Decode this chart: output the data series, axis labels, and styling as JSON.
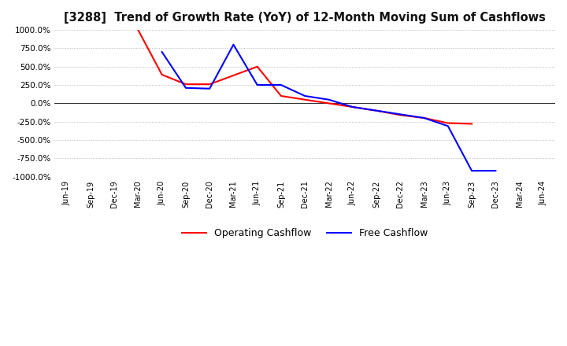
{
  "title": "[3288]  Trend of Growth Rate (YoY) of 12-Month Moving Sum of Cashflows",
  "ylim": [
    -1000,
    1000
  ],
  "yticks": [
    -1000,
    -750,
    -500,
    -250,
    0,
    250,
    500,
    750,
    1000
  ],
  "background_color": "#ffffff",
  "grid_color": "#aaaaaa",
  "operating_color": "#ff0000",
  "free_color": "#0000ff",
  "legend_labels": [
    "Operating Cashflow",
    "Free Cashflow"
  ],
  "x_labels": [
    "Jun-19",
    "Sep-19",
    "Dec-19",
    "Mar-20",
    "Jun-20",
    "Sep-20",
    "Dec-20",
    "Mar-21",
    "Jun-21",
    "Sep-21",
    "Dec-21",
    "Mar-22",
    "Jun-22",
    "Sep-22",
    "Dec-22",
    "Mar-23",
    "Jun-23",
    "Sep-23",
    "Dec-23",
    "Mar-24",
    "Jun-24"
  ],
  "operating_cf_x": [
    3,
    4,
    5,
    6,
    7,
    8,
    9,
    10,
    11,
    12,
    13,
    14,
    15,
    16,
    17
  ],
  "operating_cf_y": [
    1000,
    390,
    260,
    260,
    380,
    500,
    100,
    50,
    0,
    -50,
    -100,
    -160,
    -200,
    -270,
    -280
  ],
  "free_cf_x": [
    4,
    5,
    6,
    7,
    8,
    9,
    10,
    11,
    12,
    13,
    14,
    15,
    16,
    17,
    18
  ],
  "free_cf_y": [
    700,
    210,
    200,
    800,
    250,
    250,
    100,
    50,
    -50,
    -100,
    -150,
    -200,
    -310,
    -920,
    -920
  ]
}
